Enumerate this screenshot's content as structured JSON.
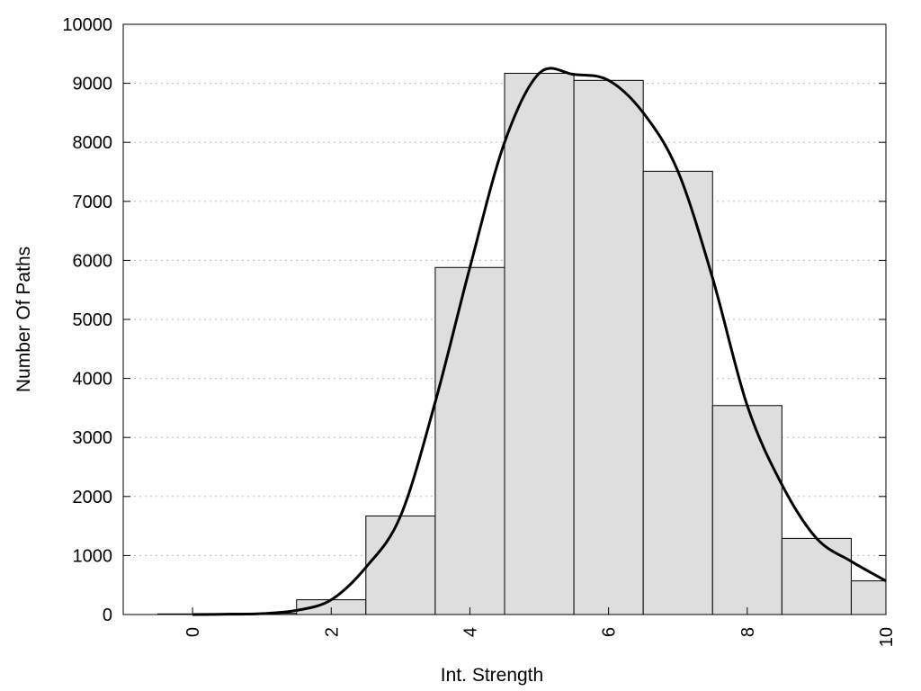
{
  "chart_data": {
    "type": "bar",
    "title": "",
    "xlabel": "Int. Strength",
    "ylabel": "Number Of Paths",
    "xlim": [
      -1,
      10
    ],
    "ylim": [
      0,
      10000
    ],
    "xticks": [
      0,
      2,
      4,
      6,
      8,
      10
    ],
    "yticks": [
      0,
      1000,
      2000,
      3000,
      4000,
      5000,
      6000,
      7000,
      8000,
      9000,
      10000
    ],
    "grid": "horizontal dotted",
    "bar_color": "#dedede",
    "bar_edge_color": "#000000",
    "bars": [
      {
        "x": 0,
        "value": 10
      },
      {
        "x": 1,
        "value": 20
      },
      {
        "x": 2,
        "value": 250
      },
      {
        "x": 3,
        "value": 1670
      },
      {
        "x": 4,
        "value": 5880
      },
      {
        "x": 5,
        "value": 9170
      },
      {
        "x": 6,
        "value": 9050
      },
      {
        "x": 7,
        "value": 7510
      },
      {
        "x": 8,
        "value": 3540
      },
      {
        "x": 9,
        "value": 1290
      },
      {
        "x": 10,
        "value": 570
      }
    ],
    "curve": {
      "color": "#000000",
      "points": [
        [
          0,
          0
        ],
        [
          0.5,
          5
        ],
        [
          1,
          15
        ],
        [
          1.5,
          70
        ],
        [
          2,
          250
        ],
        [
          2.5,
          800
        ],
        [
          3,
          1670
        ],
        [
          3.5,
          3600
        ],
        [
          4,
          5880
        ],
        [
          4.5,
          8000
        ],
        [
          5,
          9170
        ],
        [
          5.5,
          9150
        ],
        [
          6,
          9050
        ],
        [
          6.5,
          8500
        ],
        [
          7,
          7510
        ],
        [
          7.5,
          5700
        ],
        [
          8,
          3540
        ],
        [
          8.5,
          2200
        ],
        [
          9,
          1290
        ],
        [
          9.5,
          900
        ],
        [
          10,
          570
        ]
      ]
    }
  }
}
